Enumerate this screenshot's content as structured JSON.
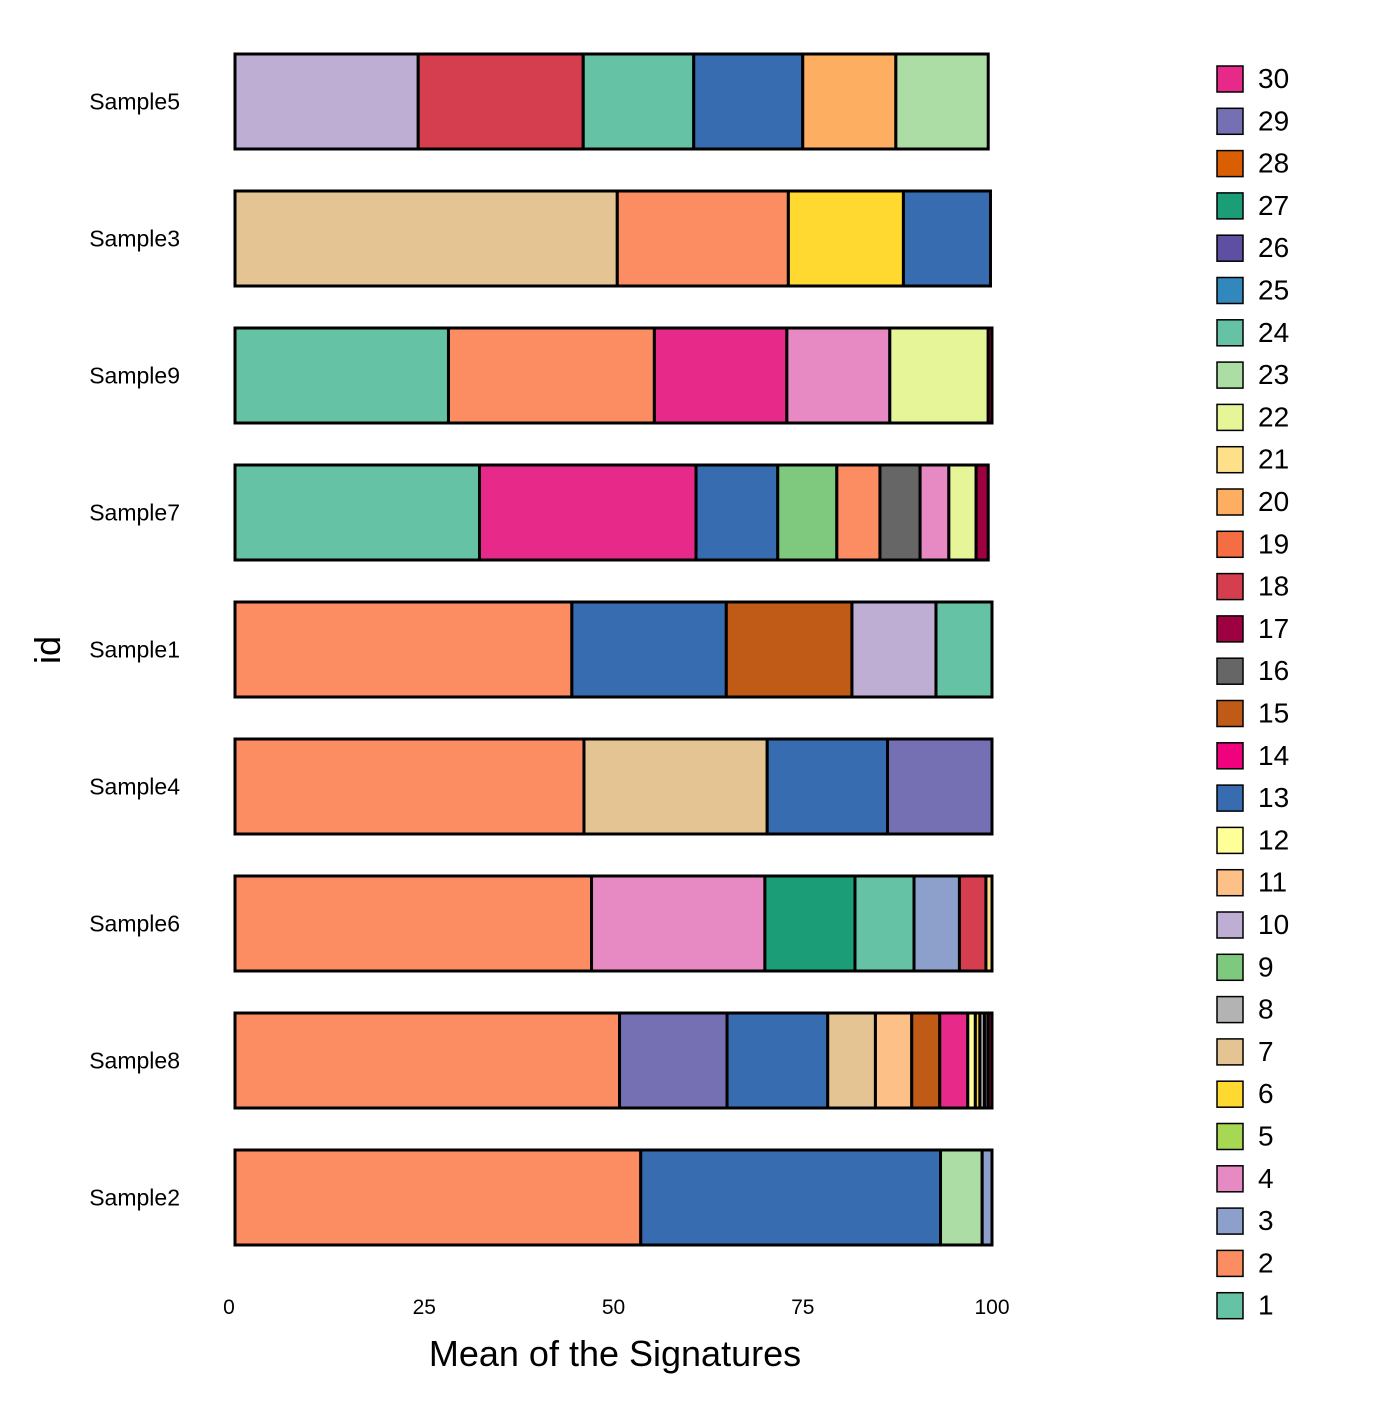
{
  "chart_data": {
    "type": "bar",
    "orientation": "horizontal",
    "stacked": true,
    "xlabel": "Mean of the Signatures",
    "ylabel": "id",
    "xlim": [
      0,
      100
    ],
    "xticks": [
      "0",
      "25",
      "50",
      "75",
      "100"
    ],
    "legend_position": "right",
    "legend": [
      {
        "label": "30",
        "color": "#E7298A"
      },
      {
        "label": "29",
        "color": "#7570B3"
      },
      {
        "label": "28",
        "color": "#D95F02"
      },
      {
        "label": "27",
        "color": "#1B9E77"
      },
      {
        "label": "26",
        "color": "#5E4FA2"
      },
      {
        "label": "25",
        "color": "#3288BD"
      },
      {
        "label": "24",
        "color": "#66C2A5"
      },
      {
        "label": "23",
        "color": "#ABDDA4"
      },
      {
        "label": "22",
        "color": "#E6F598"
      },
      {
        "label": "21",
        "color": "#FEE08B"
      },
      {
        "label": "20",
        "color": "#FDAE61"
      },
      {
        "label": "19",
        "color": "#F46D43"
      },
      {
        "label": "18",
        "color": "#D53E4F"
      },
      {
        "label": "17",
        "color": "#9E0142"
      },
      {
        "label": "16",
        "color": "#666666"
      },
      {
        "label": "15",
        "color": "#BF5B17"
      },
      {
        "label": "14",
        "color": "#F0027F"
      },
      {
        "label": "13",
        "color": "#386CB0"
      },
      {
        "label": "12",
        "color": "#FFFF99"
      },
      {
        "label": "11",
        "color": "#FDC086"
      },
      {
        "label": "10",
        "color": "#BEAED4"
      },
      {
        "label": "9",
        "color": "#7FC97F"
      },
      {
        "label": "8",
        "color": "#B3B3B3"
      },
      {
        "label": "7",
        "color": "#E5C494"
      },
      {
        "label": "6",
        "color": "#FFD92F"
      },
      {
        "label": "5",
        "color": "#A6D854"
      },
      {
        "label": "4",
        "color": "#E78AC3"
      },
      {
        "label": "3",
        "color": "#8DA0CB"
      },
      {
        "label": "2",
        "color": "#FC8D62"
      },
      {
        "label": "1",
        "color": "#66C2A5"
      }
    ],
    "categories": [
      "Sample5",
      "Sample3",
      "Sample9",
      "Sample7",
      "Sample1",
      "Sample4",
      "Sample6",
      "Sample8",
      "Sample2"
    ],
    "bars": [
      {
        "id": "Sample5",
        "segments": [
          {
            "signature": "10",
            "value": 24.2
          },
          {
            "signature": "18",
            "value": 21.8
          },
          {
            "signature": "24",
            "value": 14.6
          },
          {
            "signature": "13",
            "value": 14.4
          },
          {
            "signature": "20",
            "value": 12.3
          },
          {
            "signature": "23",
            "value": 12.2
          }
        ]
      },
      {
        "id": "Sample3",
        "segments": [
          {
            "signature": "7",
            "value": 50.5
          },
          {
            "signature": "2",
            "value": 22.6
          },
          {
            "signature": "6",
            "value": 15.2
          },
          {
            "signature": "13",
            "value": 11.5
          }
        ]
      },
      {
        "id": "Sample9",
        "segments": [
          {
            "signature": "24",
            "value": 28.2
          },
          {
            "signature": "2",
            "value": 27.2
          },
          {
            "signature": "30",
            "value": 17.5
          },
          {
            "signature": "4",
            "value": 13.6
          },
          {
            "signature": "22",
            "value": 13.0
          },
          {
            "signature": "17",
            "value": 0.5
          }
        ]
      },
      {
        "id": "Sample7",
        "segments": [
          {
            "signature": "24",
            "value": 32.3
          },
          {
            "signature": "30",
            "value": 28.6
          },
          {
            "signature": "13",
            "value": 10.8
          },
          {
            "signature": "9",
            "value": 7.8
          },
          {
            "signature": "2",
            "value": 5.7
          },
          {
            "signature": "16",
            "value": 5.3
          },
          {
            "signature": "4",
            "value": 3.8
          },
          {
            "signature": "22",
            "value": 3.6
          },
          {
            "signature": "17",
            "value": 1.6
          }
        ]
      },
      {
        "id": "Sample1",
        "segments": [
          {
            "signature": "2",
            "value": 44.5
          },
          {
            "signature": "13",
            "value": 20.4
          },
          {
            "signature": "15",
            "value": 16.6
          },
          {
            "signature": "10",
            "value": 11.1
          },
          {
            "signature": "24",
            "value": 7.4
          }
        ]
      },
      {
        "id": "Sample4",
        "segments": [
          {
            "signature": "2",
            "value": 46.1
          },
          {
            "signature": "7",
            "value": 24.2
          },
          {
            "signature": "13",
            "value": 15.9
          },
          {
            "signature": "29",
            "value": 13.8
          }
        ]
      },
      {
        "id": "Sample6",
        "segments": [
          {
            "signature": "2",
            "value": 47.1
          },
          {
            "signature": "4",
            "value": 22.9
          },
          {
            "signature": "27",
            "value": 11.9
          },
          {
            "signature": "24",
            "value": 7.8
          },
          {
            "signature": "3",
            "value": 6.0
          },
          {
            "signature": "18",
            "value": 3.5
          },
          {
            "signature": "21",
            "value": 0.8
          }
        ]
      },
      {
        "id": "Sample8",
        "segments": [
          {
            "signature": "2",
            "value": 50.8
          },
          {
            "signature": "29",
            "value": 14.2
          },
          {
            "signature": "13",
            "value": 13.3
          },
          {
            "signature": "7",
            "value": 6.3
          },
          {
            "signature": "11",
            "value": 4.8
          },
          {
            "signature": "15",
            "value": 3.7
          },
          {
            "signature": "30",
            "value": 3.7
          },
          {
            "signature": "12",
            "value": 1.0
          },
          {
            "signature": "6",
            "value": 0.6
          },
          {
            "signature": "8",
            "value": 0.6
          },
          {
            "signature": "16",
            "value": 0.5
          },
          {
            "signature": "17",
            "value": 0.5
          }
        ]
      },
      {
        "id": "Sample2",
        "segments": [
          {
            "signature": "2",
            "value": 53.6
          },
          {
            "signature": "13",
            "value": 39.6
          },
          {
            "signature": "23",
            "value": 5.5
          },
          {
            "signature": "3",
            "value": 1.3
          }
        ]
      }
    ]
  }
}
